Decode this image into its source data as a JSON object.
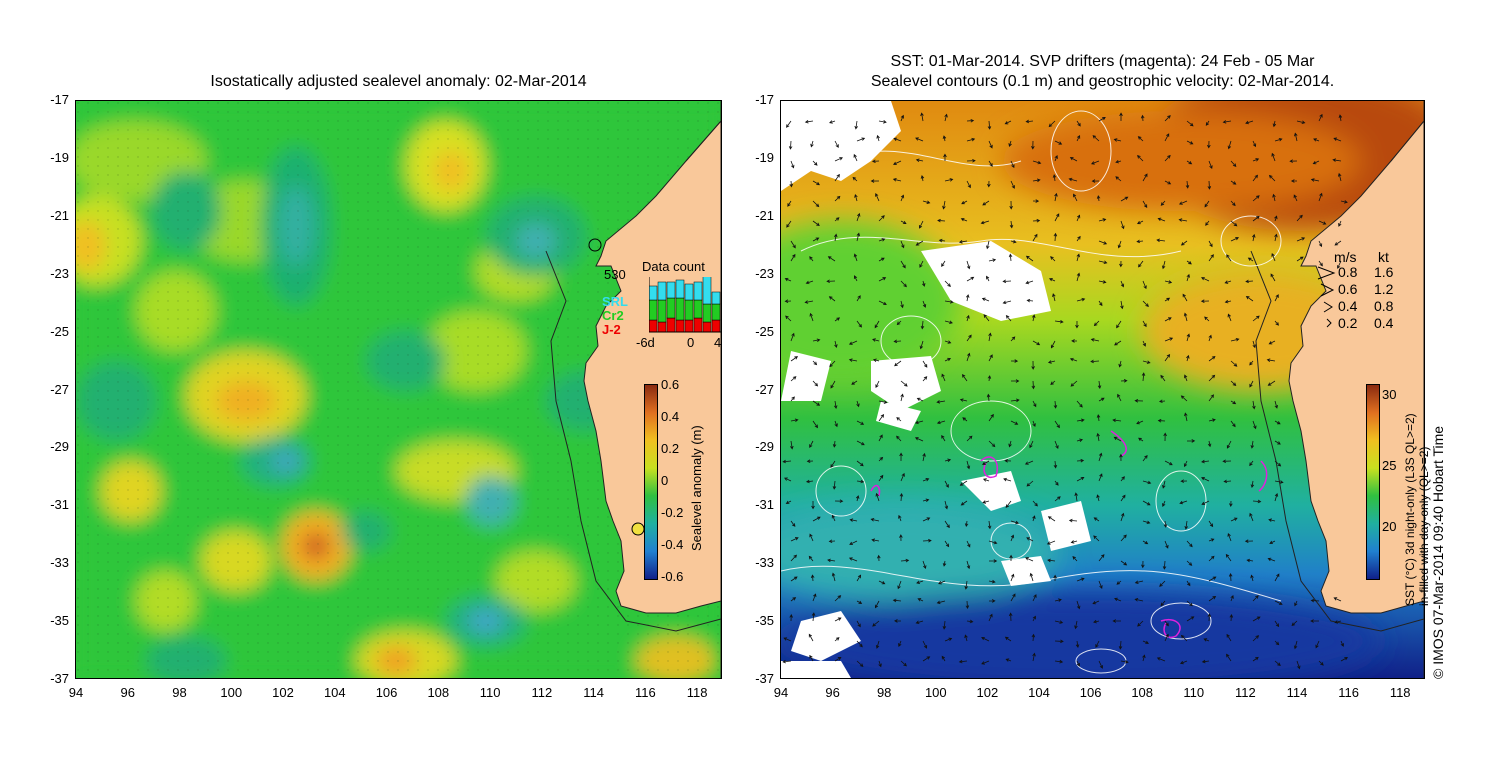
{
  "left_panel": {
    "title": "Isostatically adjusted sealevel anomaly: 02-Mar-2014",
    "y_ticks": [
      "-17",
      "-19",
      "-21",
      "-23",
      "-25",
      "-27",
      "-29",
      "-31",
      "-33",
      "-35",
      "-37"
    ],
    "x_ticks": [
      "94",
      "96",
      "98",
      "100",
      "102",
      "104",
      "106",
      "108",
      "110",
      "112",
      "114",
      "116",
      "118"
    ],
    "colorbar": {
      "label": "Sealevel anomaly (m)",
      "ticks": [
        "0.6",
        "0.4",
        "0.2",
        "0",
        "-0.2",
        "-0.4",
        "-0.6"
      ]
    },
    "data_count": {
      "title": "Data count",
      "max_label": "530",
      "legend": [
        {
          "name": "SRL",
          "color": "#33ddee"
        },
        {
          "name": "Cr2",
          "color": "#22cc22"
        },
        {
          "name": "J-2",
          "color": "#ee0000"
        }
      ],
      "x_labels": [
        "-6d",
        "0",
        "4"
      ]
    }
  },
  "right_panel": {
    "title_line1": "SST: 01-Mar-2014. SVP drifters (magenta): 24 Feb - 05 Mar",
    "title_line2": "Sealevel contours (0.1 m) and geostrophic velocity: 02-Mar-2014.",
    "y_ticks": [
      "-17",
      "-19",
      "-21",
      "-23",
      "-25",
      "-27",
      "-29",
      "-31",
      "-33",
      "-35",
      "-37"
    ],
    "x_ticks": [
      "94",
      "96",
      "98",
      "100",
      "102",
      "104",
      "106",
      "108",
      "110",
      "112",
      "114",
      "116",
      "118"
    ],
    "velocity_legend": {
      "header_ms": "m/s",
      "header_kt": "kt",
      "rows": [
        {
          "ms": "0.8",
          "kt": "1.6"
        },
        {
          "ms": "0.6",
          "kt": "1.2"
        },
        {
          "ms": "0.4",
          "kt": "0.8"
        },
        {
          "ms": "0.2",
          "kt": "0.4"
        }
      ]
    },
    "colorbar": {
      "label_line1": "SST (°C) 3d night-only (L3S QL>=2)",
      "label_line2": "in-filled with day-only (QL>=2)",
      "ticks": [
        "30",
        "25",
        "20"
      ]
    },
    "credit": "© IMOS 07-Mar-2014 09:40 Hobart Time"
  },
  "colors": {
    "land": "#f9c89a",
    "sla_background": "#2fc63a"
  }
}
